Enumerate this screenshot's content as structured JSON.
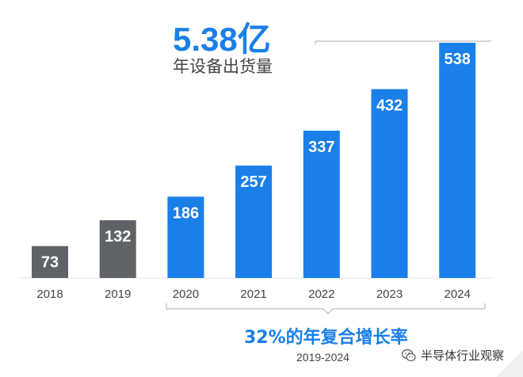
{
  "headline": {
    "value": "5.38亿",
    "caption": "年设备出货量"
  },
  "cagr": {
    "label": "32%的年复合增长率",
    "period": "2019-2024"
  },
  "watermark": {
    "text": "半导体行业观察",
    "icon": "wechat-icon"
  },
  "colors": {
    "historical_bar": "#5f6266",
    "projected_bar": "#1a7fe8",
    "accent_text": "#1a7fe8"
  },
  "chart_data": {
    "type": "bar",
    "categories": [
      "2018",
      "2019",
      "2020",
      "2021",
      "2022",
      "2023",
      "2024"
    ],
    "values": [
      73,
      132,
      186,
      257,
      337,
      432,
      538
    ],
    "bar_colors": [
      "#5f6266",
      "#5f6266",
      "#1a7fe8",
      "#1a7fe8",
      "#1a7fe8",
      "#1a7fe8",
      "#1a7fe8"
    ],
    "data_labels": true,
    "ylim": [
      0,
      538
    ],
    "grid": false,
    "legend": "none",
    "title": "",
    "xlabel": "",
    "ylabel": ""
  }
}
